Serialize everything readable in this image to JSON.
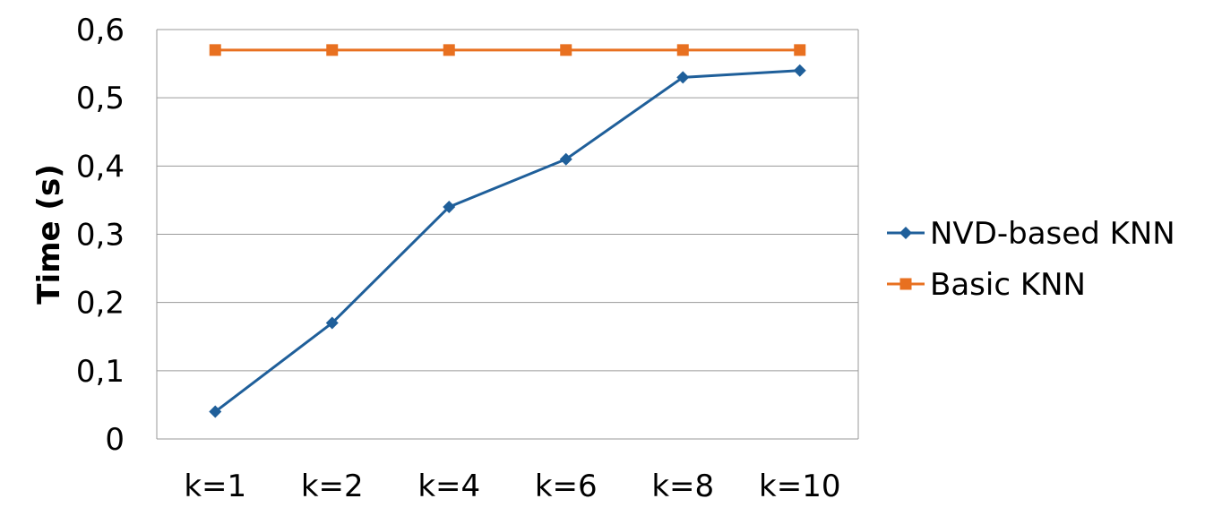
{
  "chart_data": {
    "type": "line",
    "categories": [
      "k=1",
      "k=2",
      "k=4",
      "k=6",
      "k=8",
      "k=10"
    ],
    "series": [
      {
        "name": "NVD-based KNN",
        "values": [
          0.04,
          0.17,
          0.34,
          0.41,
          0.53,
          0.54
        ],
        "color": "#1f5f9a",
        "marker": "diamond"
      },
      {
        "name": "Basic KNN",
        "values": [
          0.57,
          0.57,
          0.57,
          0.57,
          0.57,
          0.57
        ],
        "color": "#e87020",
        "marker": "square"
      }
    ],
    "ylabel": "Time (s)",
    "xlabel": "",
    "ylim": [
      0,
      0.6
    ],
    "yticks": [
      "0",
      "0,1",
      "0,2",
      "0,3",
      "0,4",
      "0,5",
      "0,6"
    ],
    "grid": true,
    "legend_position": "right"
  }
}
